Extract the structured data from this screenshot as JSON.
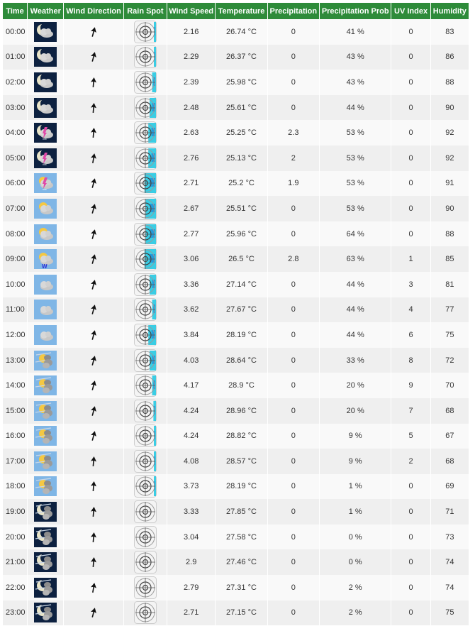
{
  "headers": [
    "Time",
    "Weather",
    "Wind Direction",
    "Rain Spot",
    "Wind Speed",
    "Temperature",
    "Precipitation",
    "Precipitation Prob",
    "UV Index",
    "Humidity"
  ],
  "rows": [
    {
      "time": "00:00",
      "icon": "night-partly-cloudy",
      "rot": 15,
      "rain_level": 0.1,
      "wind": "2.16",
      "temp": "26.74 °C",
      "precip": "0",
      "prob": "41 %",
      "uv": "0",
      "hum": "83"
    },
    {
      "time": "01:00",
      "icon": "night-cloudy",
      "rot": 15,
      "rain_level": 0.1,
      "wind": "2.29",
      "temp": "26.37 °C",
      "precip": "0",
      "prob": "43 %",
      "uv": "0",
      "hum": "86"
    },
    {
      "time": "02:00",
      "icon": "night-cloudy",
      "rot": 5,
      "rain_level": 0.3,
      "wind": "2.39",
      "temp": "25.98 °C",
      "precip": "0",
      "prob": "43 %",
      "uv": "0",
      "hum": "88"
    },
    {
      "time": "03:00",
      "icon": "night-cloudy",
      "rot": 5,
      "rain_level": 0.5,
      "wind": "2.48",
      "temp": "25.61 °C",
      "precip": "0",
      "prob": "44 %",
      "uv": "0",
      "hum": "90"
    },
    {
      "time": "04:00",
      "icon": "night-rain-snow",
      "rot": 5,
      "rain_level": 0.6,
      "wind": "2.63",
      "temp": "25.25 °C",
      "precip": "2.3",
      "prob": "53 %",
      "uv": "0",
      "hum": "92"
    },
    {
      "time": "05:00",
      "icon": "night-rain-snow",
      "rot": 10,
      "rain_level": 0.6,
      "wind": "2.76",
      "temp": "25.13 °C",
      "precip": "2",
      "prob": "53 %",
      "uv": "0",
      "hum": "92"
    },
    {
      "time": "06:00",
      "icon": "day-rain-snow",
      "rot": 15,
      "rain_level": 0.9,
      "wind": "2.71",
      "temp": "25.2 °C",
      "precip": "1.9",
      "prob": "53 %",
      "uv": "0",
      "hum": "91"
    },
    {
      "time": "07:00",
      "icon": "day-partly-cloudy",
      "rot": 15,
      "rain_level": 0.8,
      "wind": "2.67",
      "temp": "25.51 °C",
      "precip": "0",
      "prob": "53 %",
      "uv": "0",
      "hum": "90"
    },
    {
      "time": "08:00",
      "icon": "day-partly-cloudy",
      "rot": 15,
      "rain_level": 0.8,
      "wind": "2.77",
      "temp": "25.96 °C",
      "precip": "0",
      "prob": "64 %",
      "uv": "0",
      "hum": "88"
    },
    {
      "time": "09:00",
      "icon": "day-rain-storm",
      "rot": 15,
      "rain_level": 0.9,
      "wind": "3.06",
      "temp": "26.5 °C",
      "precip": "2.8",
      "prob": "63 %",
      "uv": "1",
      "hum": "85"
    },
    {
      "time": "10:00",
      "icon": "day-cloudy",
      "rot": 15,
      "rain_level": 0.5,
      "wind": "3.36",
      "temp": "27.14 °C",
      "precip": "0",
      "prob": "44 %",
      "uv": "3",
      "hum": "81"
    },
    {
      "time": "11:00",
      "icon": "day-cloudy",
      "rot": 15,
      "rain_level": 0.3,
      "wind": "3.62",
      "temp": "27.67 °C",
      "precip": "0",
      "prob": "44 %",
      "uv": "4",
      "hum": "77"
    },
    {
      "time": "12:00",
      "icon": "day-cloudy",
      "rot": 15,
      "rain_level": 0.6,
      "wind": "3.84",
      "temp": "28.19 °C",
      "precip": "0",
      "prob": "44 %",
      "uv": "6",
      "hum": "75"
    },
    {
      "time": "13:00",
      "icon": "day-hazy-cloudy",
      "rot": 15,
      "rain_level": 0.5,
      "wind": "4.03",
      "temp": "28.64 °C",
      "precip": "0",
      "prob": "33 %",
      "uv": "8",
      "hum": "72"
    },
    {
      "time": "14:00",
      "icon": "day-hazy-cloudy",
      "rot": 15,
      "rain_level": 0.3,
      "wind": "4.17",
      "temp": "28.9 °C",
      "precip": "0",
      "prob": "20 %",
      "uv": "9",
      "hum": "70"
    },
    {
      "time": "15:00",
      "icon": "day-hazy-cloudy",
      "rot": 15,
      "rain_level": 0.2,
      "wind": "4.24",
      "temp": "28.96 °C",
      "precip": "0",
      "prob": "20 %",
      "uv": "7",
      "hum": "68"
    },
    {
      "time": "16:00",
      "icon": "day-hazy-cloudy",
      "rot": 15,
      "rain_level": 0.15,
      "wind": "4.24",
      "temp": "28.82 °C",
      "precip": "0",
      "prob": "9 %",
      "uv": "5",
      "hum": "67"
    },
    {
      "time": "17:00",
      "icon": "day-hazy-cloudy",
      "rot": 5,
      "rain_level": 0.15,
      "wind": "4.08",
      "temp": "28.57 °C",
      "precip": "0",
      "prob": "9 %",
      "uv": "2",
      "hum": "68"
    },
    {
      "time": "18:00",
      "icon": "day-hazy-cloudy",
      "rot": 5,
      "rain_level": 0.1,
      "wind": "3.73",
      "temp": "28.19 °C",
      "precip": "0",
      "prob": "1 %",
      "uv": "0",
      "hum": "69"
    },
    {
      "time": "19:00",
      "icon": "night-hazy-cloudy",
      "rot": 5,
      "rain_level": 0,
      "wind": "3.33",
      "temp": "27.85 °C",
      "precip": "0",
      "prob": "1 %",
      "uv": "0",
      "hum": "71"
    },
    {
      "time": "20:00",
      "icon": "night-hazy-cloudy",
      "rot": 5,
      "rain_level": 0,
      "wind": "3.04",
      "temp": "27.58 °C",
      "precip": "0",
      "prob": "0 %",
      "uv": "0",
      "hum": "73"
    },
    {
      "time": "21:00",
      "icon": "night-hazy-cloudy",
      "rot": 5,
      "rain_level": 0,
      "wind": "2.9",
      "temp": "27.46 °C",
      "precip": "0",
      "prob": "0 %",
      "uv": "0",
      "hum": "74"
    },
    {
      "time": "22:00",
      "icon": "night-hazy-cloudy",
      "rot": 10,
      "rain_level": 0,
      "wind": "2.79",
      "temp": "27.31 °C",
      "precip": "0",
      "prob": "2 %",
      "uv": "0",
      "hum": "74"
    },
    {
      "time": "23:00",
      "icon": "night-hazy-cloudy",
      "rot": 15,
      "rain_level": 0,
      "wind": "2.71",
      "temp": "27.15 °C",
      "precip": "0",
      "prob": "2 %",
      "uv": "0",
      "hum": "75"
    }
  ],
  "colors": {
    "header_bg": "#2e8b3a",
    "header_text": "#ffffff",
    "row_odd": "#f9f9f9",
    "row_even": "#efefef",
    "night_bg": "#0d2140",
    "day_bg": "#7fb6e6",
    "rain": "#19c6e0"
  }
}
